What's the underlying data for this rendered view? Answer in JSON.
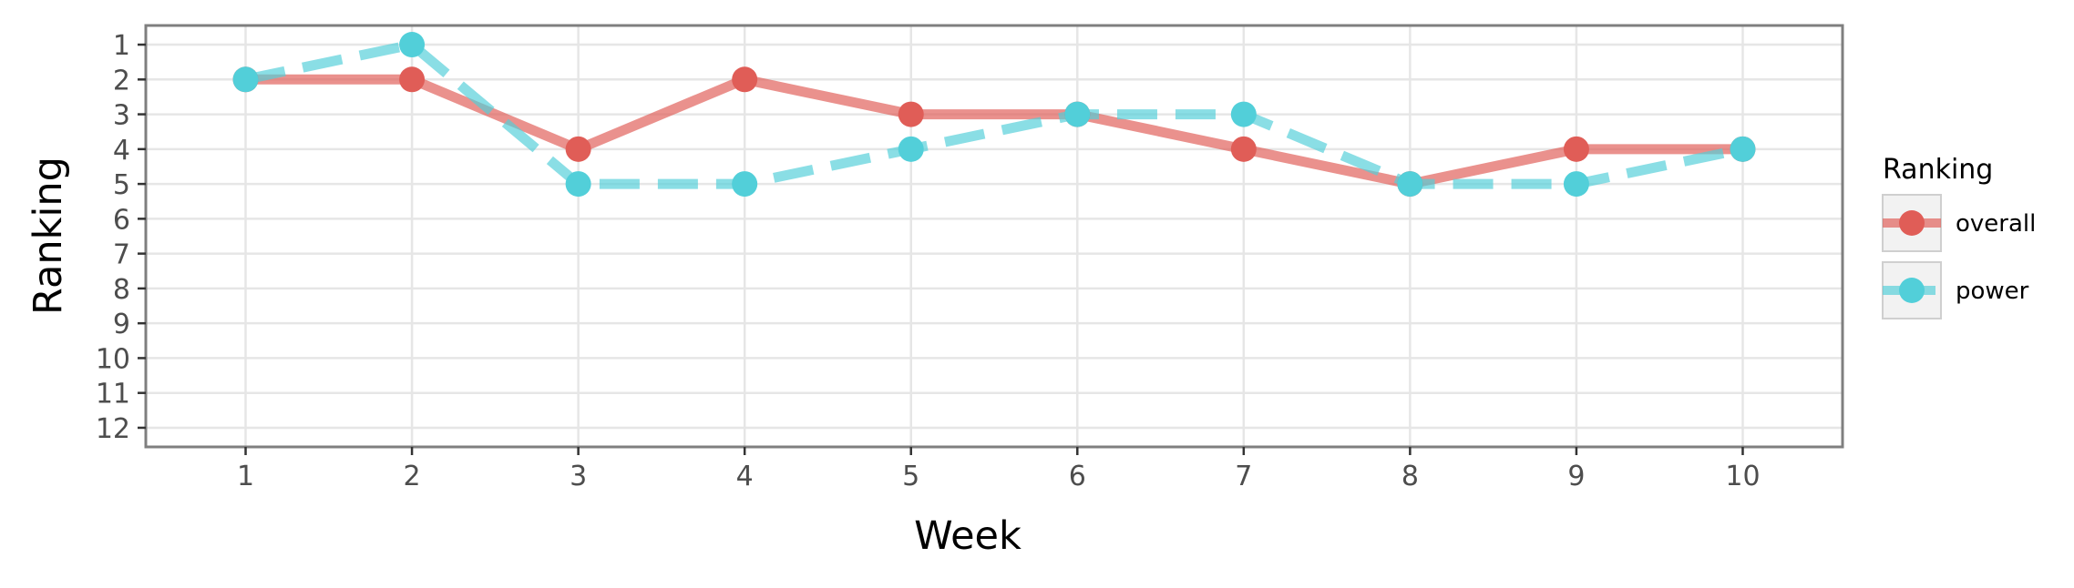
{
  "chart_data": {
    "type": "line",
    "title": "",
    "xlabel": "Week",
    "ylabel": "Ranking",
    "x": [
      1,
      2,
      3,
      4,
      5,
      6,
      7,
      8,
      9,
      10
    ],
    "x_tick_labels": [
      "1",
      "2",
      "3",
      "4",
      "5",
      "6",
      "7",
      "8",
      "9",
      "10"
    ],
    "xlim": [
      0.4,
      10.6
    ],
    "y_tick_labels": [
      "1",
      "2",
      "3",
      "4",
      "5",
      "6",
      "7",
      "8",
      "9",
      "10",
      "11",
      "12"
    ],
    "y_ticks": [
      1,
      2,
      3,
      4,
      5,
      6,
      7,
      8,
      9,
      10,
      11,
      12
    ],
    "ylim": [
      0.45,
      12.55
    ],
    "y_reversed": true,
    "grid": true,
    "legend": {
      "title": "Ranking",
      "position": "right"
    },
    "series": [
      {
        "name": "overall",
        "values": [
          2,
          2,
          4,
          2,
          3,
          3,
          4,
          5,
          4,
          4
        ],
        "color": "#e05d57",
        "line_style": "solid"
      },
      {
        "name": "power",
        "values": [
          2,
          1,
          5,
          5,
          4,
          3,
          3,
          5,
          5,
          4
        ],
        "color": "#52cfd9",
        "line_style": "dashed"
      }
    ]
  }
}
